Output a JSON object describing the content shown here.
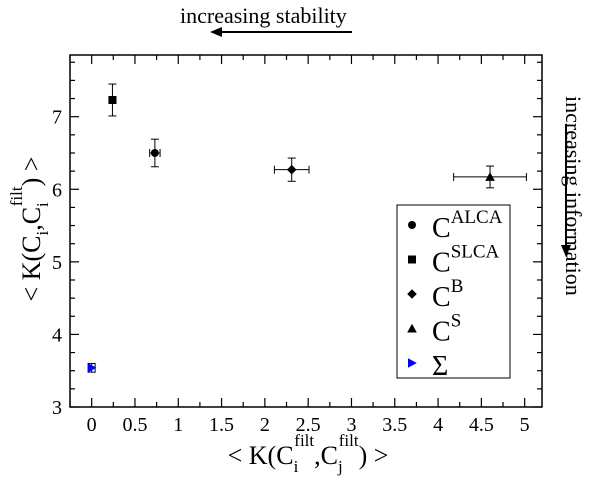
{
  "annotations": {
    "top": "increasing stability",
    "right": "increasing information"
  },
  "chart_data": {
    "type": "scatter",
    "xlim": [
      -0.25,
      5.2
    ],
    "ylim": [
      3,
      7.85
    ],
    "x_ticks": [
      0,
      0.5,
      1,
      1.5,
      2,
      2.5,
      3,
      3.5,
      4,
      4.5,
      5
    ],
    "y_ticks": [
      3,
      4,
      5,
      6,
      7
    ],
    "x_tick_labels": [
      "0",
      "0.5",
      "1",
      "1.5",
      "2",
      "2.5",
      "3",
      "3.5",
      "4",
      "4.5",
      "5"
    ],
    "y_tick_labels": [
      "3",
      "4",
      "5",
      "6",
      "7"
    ],
    "xlabel": {
      "pre": "< K(C",
      "sub1": "i",
      "sup1": "filt",
      "mid": ",C",
      "sub2": "j",
      "sup2": "filt",
      "post": ") >"
    },
    "ylabel": {
      "pre": "< K(C",
      "sub1": "i",
      "mid": ",C",
      "sub2": "i",
      "sup2": "filt",
      "post": ") >"
    },
    "grid": false,
    "legend_position": "right",
    "series": [
      {
        "name": "C",
        "name_sup": "ALCA",
        "marker": "circle",
        "color": "#000000",
        "x": 0.73,
        "y": 6.5,
        "xerr": 0.06,
        "yerr": 0.19
      },
      {
        "name": "C",
        "name_sup": "SLCA",
        "marker": "square",
        "color": "#000000",
        "x": 0.24,
        "y": 7.23,
        "xerr": 0.04,
        "yerr": 0.22
      },
      {
        "name": "C",
        "name_sup": "B",
        "marker": "diamond",
        "color": "#000000",
        "x": 2.31,
        "y": 6.27,
        "xerr": 0.2,
        "yerr": 0.16
      },
      {
        "name": "C",
        "name_sup": "S",
        "marker": "triangle-up",
        "color": "#000000",
        "x": 4.6,
        "y": 6.17,
        "xerr": 0.42,
        "yerr": 0.15
      },
      {
        "name": "Σ",
        "name_sup": "",
        "marker": "triangle-right",
        "color": "#0000ff",
        "x": 0.0,
        "y": 3.54,
        "xerr": 0.04,
        "yerr": 0.06
      }
    ]
  }
}
